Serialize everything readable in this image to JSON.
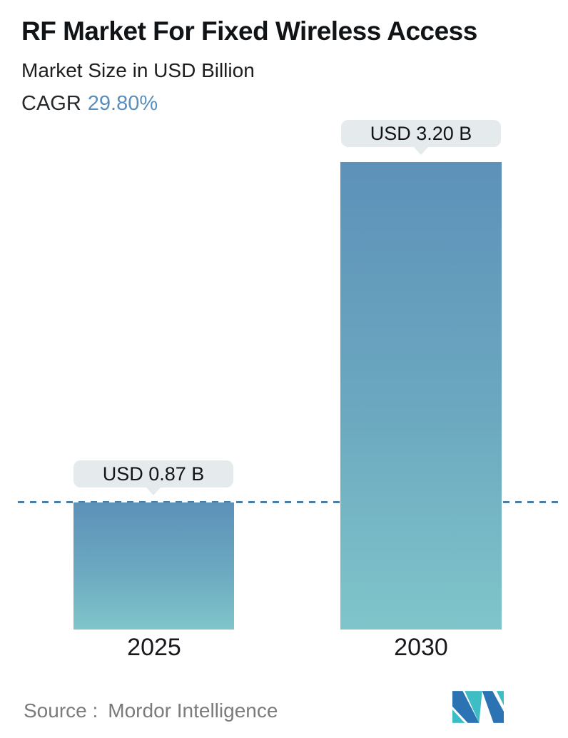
{
  "header": {
    "title": "RF Market For Fixed Wireless Access",
    "subtitle": "Market Size in USD Billion",
    "cagr_label": "CAGR",
    "cagr_value": "29.80%"
  },
  "chart_data": {
    "type": "bar",
    "title": "RF Market For Fixed Wireless Access",
    "subtitle": "Market Size in USD Billion",
    "unit": "USD Billion",
    "categories": [
      "2025",
      "2030"
    ],
    "values": [
      0.87,
      3.2
    ],
    "value_labels": [
      "USD 0.87 B",
      "USD 3.20 B"
    ],
    "cagr_percent": "29.80%",
    "ylim": [
      0,
      3.2
    ],
    "grid": false,
    "legend": false,
    "bar_gradient_top": "#5d91b9",
    "bar_gradient_bottom": "#80c5ca",
    "reference_line": {
      "style": "dashed",
      "at_value": 0.87,
      "color": "#4b7ea7"
    }
  },
  "footer": {
    "source_label": "Source :",
    "source_value": "Mordor Intelligence",
    "logo": "mordor-intelligence-logo"
  },
  "colors": {
    "accent_blue": "#5a8ebc",
    "tooltip_bg": "#e5eaec",
    "dashed_line": "#4b7ea7",
    "text_dark": "#16181b",
    "text_gray": "#7b7b7b",
    "logo_teal": "#3fbdc5",
    "logo_blue": "#2c73b4"
  }
}
